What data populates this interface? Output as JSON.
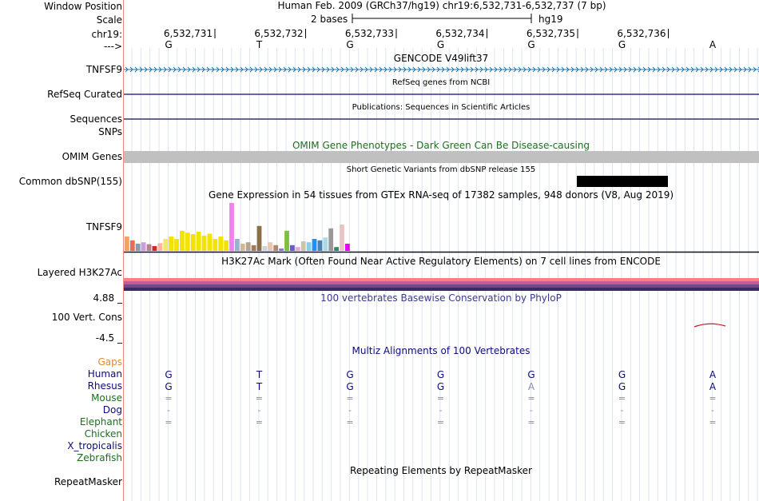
{
  "header": {
    "window_position_label": "Window Position",
    "scale_label": "Scale",
    "chrom_label": "chr19:",
    "strand_label": "--->",
    "assembly_text": "Human Feb. 2009 (GRCh37/hg19)   chr19:6,532,731-6,532,737 (7 bp)",
    "scale_text": "2 bases",
    "scale_db": "hg19",
    "positions": [
      "6,532,731",
      "6,532,732",
      "6,532,733",
      "6,532,734",
      "6,532,735",
      "6,532,736"
    ],
    "bases": [
      "G",
      "T",
      "G",
      "G",
      "G",
      "G",
      "A"
    ]
  },
  "tracks": {
    "gencode": {
      "title": "GENCODE V49lift37",
      "label": "TNFSF9",
      "color": "#1f77b4"
    },
    "refseq": {
      "title": "RefSeq genes from NCBI",
      "label": "RefSeq Curated",
      "color": "#0c0c78"
    },
    "publications": {
      "title": "Publications: Sequences in Scientific Articles",
      "label": "Sequences"
    },
    "snps": {
      "label": "SNPs"
    },
    "omim": {
      "title": "OMIM Gene Phenotypes - Dark Green Can Be Disease-causing",
      "label": "OMIM Genes",
      "color": "#1e6e1e"
    },
    "dbsnp": {
      "title": "Short Genetic Variants from dbSNP release 155",
      "label": "Common dbSNP(155)"
    },
    "gtex": {
      "title": "Gene Expression in 54 tissues from GTEx RNA-seq of 17382 samples, 948 donors (V8, Aug 2019)",
      "label": "TNFSF9"
    },
    "h3k27ac": {
      "title": "H3K27Ac Mark (Often Found Near Active Regulatory Elements) on 7 cell lines from ENCODE",
      "label": "Layered H3K27Ac"
    },
    "phylop": {
      "title": "100 vertebrates Basewise Conservation by PhyloP",
      "label": "100 Vert. Cons",
      "ymax": "4.88 _",
      "ymin": "-4.5 _"
    },
    "multiz": {
      "title": "Multiz Alignments of 100 Vertebrates",
      "species": [
        {
          "name": "Gaps",
          "color": "#e0882a",
          "seq": [
            "",
            "",
            "",
            "",
            "",
            "",
            ""
          ]
        },
        {
          "name": "Human",
          "color": "#0c0c78",
          "seq": [
            "G",
            "T",
            "G",
            "G",
            "G",
            "G",
            "A"
          ]
        },
        {
          "name": "Rhesus",
          "color": "#0c0c78",
          "seq": [
            "G",
            "T",
            "G",
            "G",
            "A",
            "G",
            "A"
          ]
        },
        {
          "name": "Mouse",
          "color": "#1e6e1e",
          "seq": [
            "=",
            "=",
            "=",
            "=",
            "=",
            "=",
            "="
          ]
        },
        {
          "name": "Dog",
          "color": "#0c0c78",
          "seq": [
            "-",
            "-",
            "-",
            "-",
            "-",
            "-",
            "-"
          ]
        },
        {
          "name": "Elephant",
          "color": "#1e6e1e",
          "seq": [
            "=",
            "=",
            "=",
            "=",
            "=",
            "=",
            "="
          ]
        },
        {
          "name": "Chicken",
          "color": "#1e6e1e",
          "seq": [
            "",
            "",
            "",
            "",
            "",
            "",
            ""
          ]
        },
        {
          "name": "X_tropicalis",
          "color": "#0c0c78",
          "seq": [
            "",
            "",
            "",
            "",
            "",
            "",
            ""
          ]
        },
        {
          "name": "Zebrafish",
          "color": "#1e6e1e",
          "seq": [
            "",
            "",
            "",
            "",
            "",
            "",
            ""
          ]
        }
      ]
    },
    "repeatmasker": {
      "title": "Repeating Elements by RepeatMasker",
      "label": "RepeatMasker"
    }
  },
  "gtex_values": [
    {
      "c": "#f4a261",
      "v": 0.3
    },
    {
      "c": "#e76f51",
      "v": 0.22
    },
    {
      "c": "#8d99ae",
      "v": 0.15
    },
    {
      "c": "#c9a0dc",
      "v": 0.18
    },
    {
      "c": "#b5838d",
      "v": 0.14
    },
    {
      "c": "#d62828",
      "v": 0.1
    },
    {
      "c": "#ffb4a2",
      "v": 0.16
    },
    {
      "c": "#f5e663",
      "v": 0.25
    },
    {
      "c": "#f2e205",
      "v": 0.3
    },
    {
      "c": "#f2e205",
      "v": 0.25
    },
    {
      "c": "#f2e205",
      "v": 0.42
    },
    {
      "c": "#f2e205",
      "v": 0.38
    },
    {
      "c": "#f2e205",
      "v": 0.35
    },
    {
      "c": "#f2e205",
      "v": 0.4
    },
    {
      "c": "#f2e205",
      "v": 0.32
    },
    {
      "c": "#f2e205",
      "v": 0.36
    },
    {
      "c": "#f2e205",
      "v": 0.25
    },
    {
      "c": "#f2e205",
      "v": 0.3
    },
    {
      "c": "#f2e205",
      "v": 0.22
    },
    {
      "c": "#ee82ee",
      "v": 1.0
    },
    {
      "c": "#99b3cc",
      "v": 0.25
    },
    {
      "c": "#d4b896",
      "v": 0.15
    },
    {
      "c": "#b5a58a",
      "v": 0.18
    },
    {
      "c": "#9c7f5c",
      "v": 0.12
    },
    {
      "c": "#8b6f47",
      "v": 0.52
    },
    {
      "c": "#d3d3d3",
      "v": 0.1
    },
    {
      "c": "#e6c9b0",
      "v": 0.18
    },
    {
      "c": "#b08968",
      "v": 0.12
    },
    {
      "c": "#9370db",
      "v": 0.05
    },
    {
      "c": "#7fbf3f",
      "v": 0.42
    },
    {
      "c": "#6a5acd",
      "v": 0.12
    },
    {
      "c": "#e6a8d7",
      "v": 0.08
    },
    {
      "c": "#cfc2a5",
      "v": 0.2
    },
    {
      "c": "#87ceeb",
      "v": 0.18
    },
    {
      "c": "#1e90ff",
      "v": 0.25
    },
    {
      "c": "#4682b4",
      "v": 0.22
    },
    {
      "c": "#add8e6",
      "v": 0.28
    },
    {
      "c": "#999999",
      "v": 0.47
    },
    {
      "c": "#2e8b57",
      "v": 0.08
    },
    {
      "c": "#e8c5c5",
      "v": 0.55
    },
    {
      "c": "#ee00ee",
      "v": 0.15
    }
  ],
  "h3k27ac_colors": [
    "#ff7f7f",
    "#c45a9a",
    "#7a4488",
    "#3a2a6a"
  ],
  "phylop_arc_color": "#d41c1c"
}
